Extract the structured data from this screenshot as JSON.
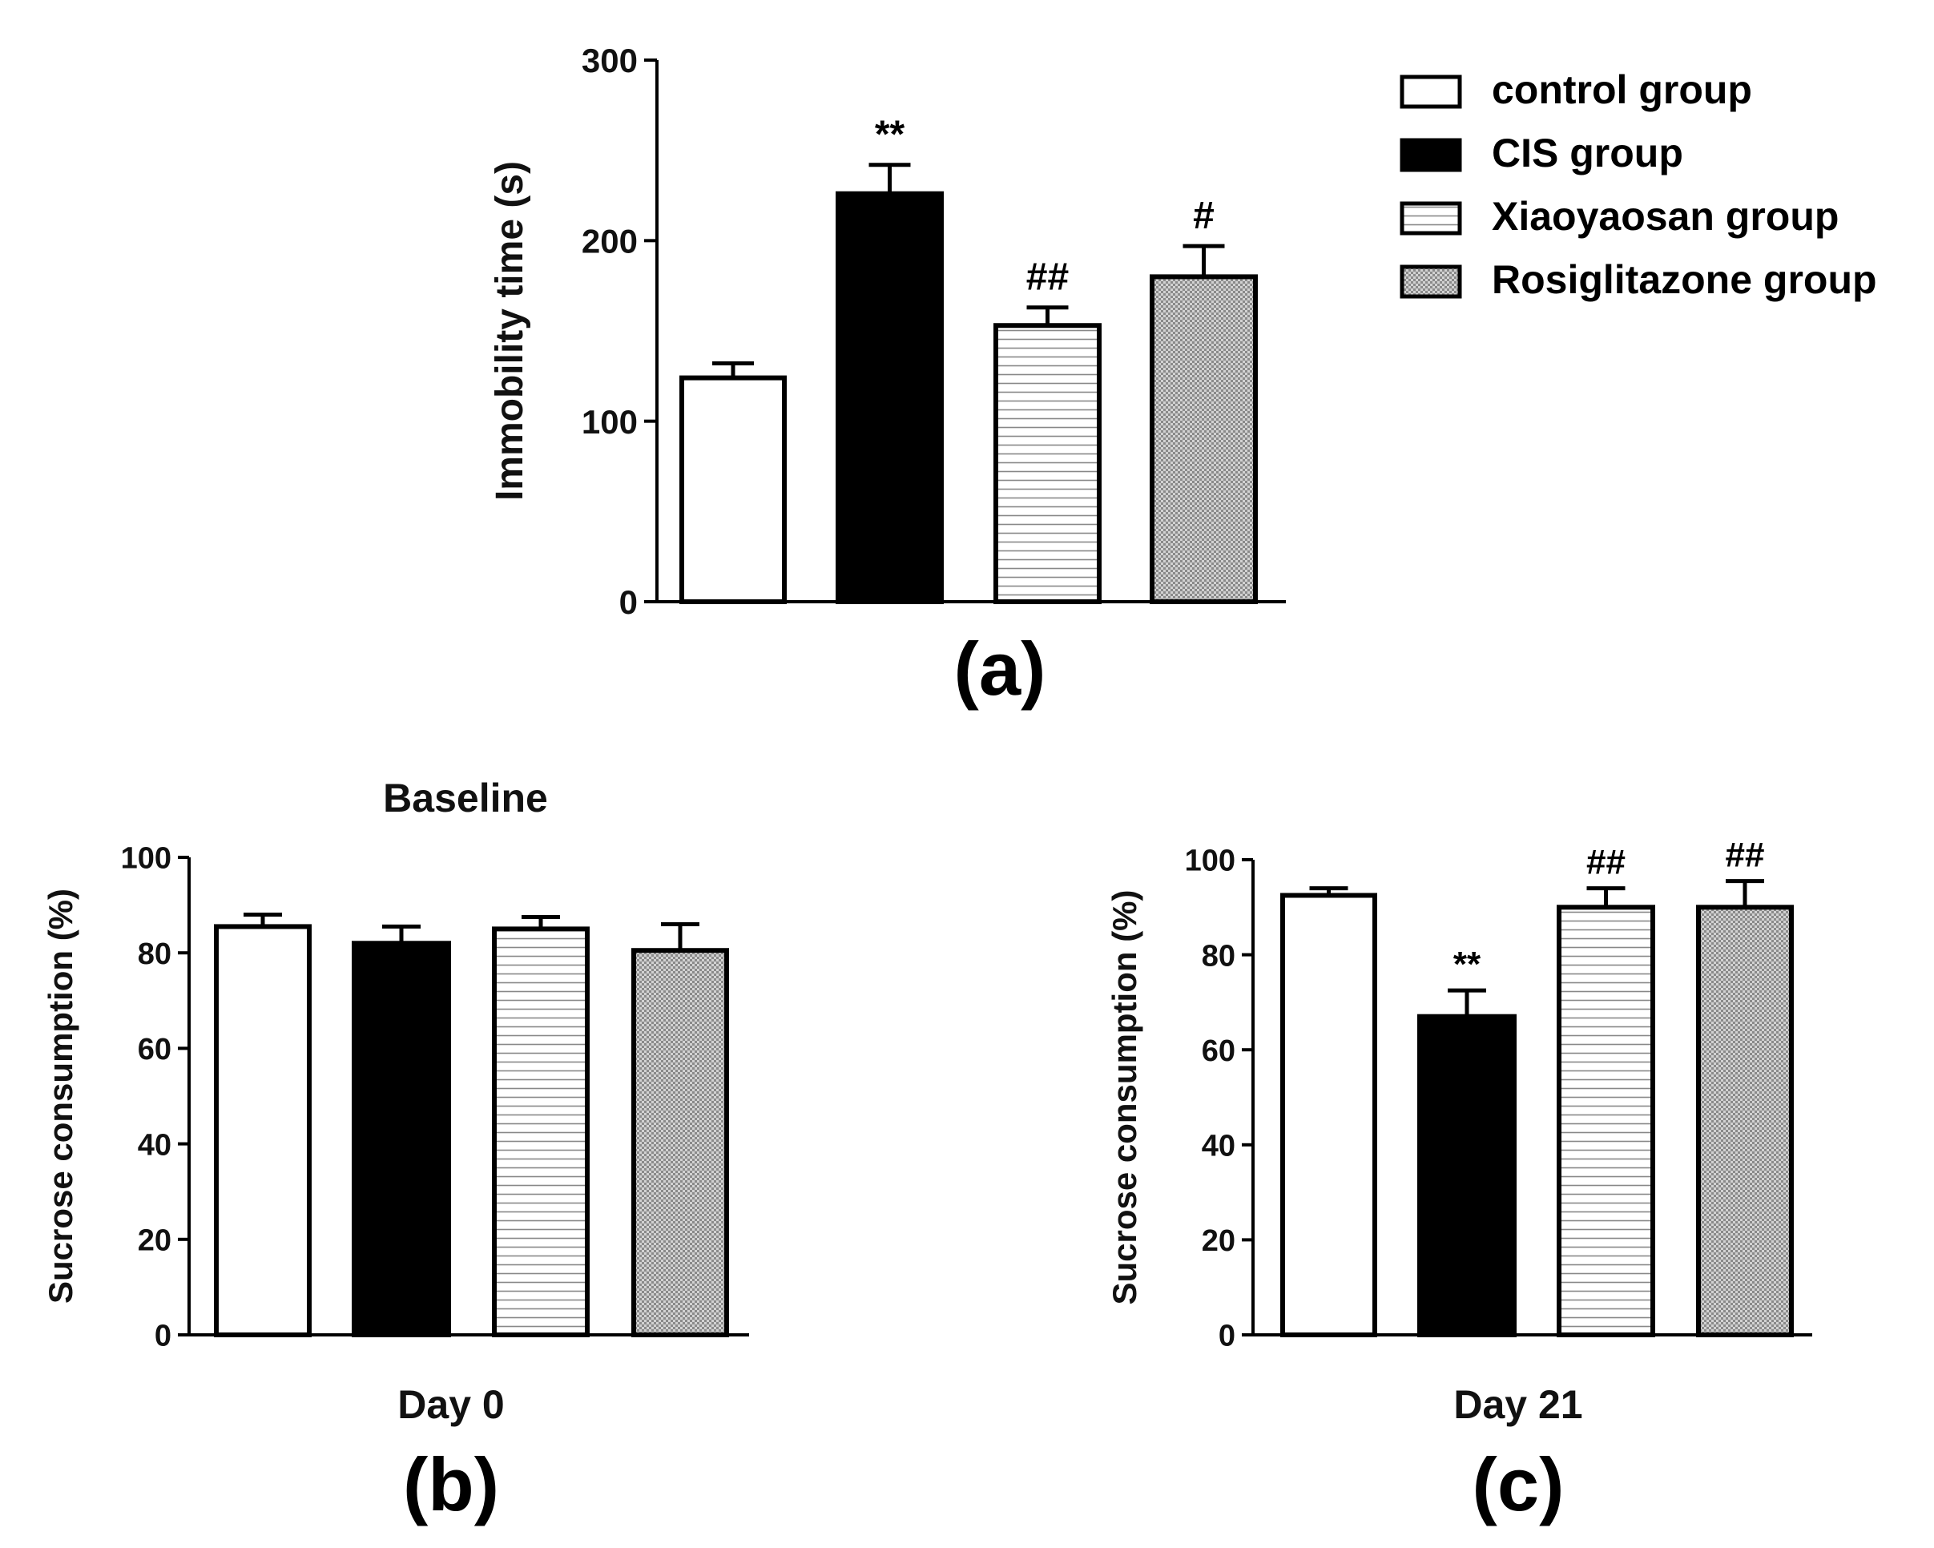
{
  "legend": [
    {
      "key": "control",
      "label": "control group"
    },
    {
      "key": "cis",
      "label": "CIS group"
    },
    {
      "key": "xiao",
      "label": "Xiaoyaosan group"
    },
    {
      "key": "rosi",
      "label": "Rosiglitazone group"
    }
  ],
  "chart_data": [
    {
      "type": "bar",
      "panel": "(a)",
      "title": "",
      "xlabel": "",
      "ylabel": "Immobility time (s)",
      "ylim": [
        0,
        300
      ],
      "yticks": [
        0,
        100,
        200,
        300
      ],
      "categories": [
        "control group",
        "CIS group",
        "Xiaoyaosan group",
        "Rosiglitazone group"
      ],
      "values": [
        124,
        226,
        153,
        180
      ],
      "errors": [
        8,
        16,
        10,
        17
      ],
      "annotations": [
        "",
        "**",
        "##",
        "#"
      ]
    },
    {
      "type": "bar",
      "panel": "(b)",
      "title": "Baseline",
      "xlabel": "Day 0",
      "ylabel": "Sucrose consumption (%)",
      "ylim": [
        0,
        100
      ],
      "yticks": [
        0,
        20,
        40,
        60,
        80,
        100
      ],
      "categories": [
        "control group",
        "CIS group",
        "Xiaoyaosan group",
        "Rosiglitazone group"
      ],
      "values": [
        85.5,
        82,
        85,
        80.5
      ],
      "errors": [
        2.5,
        3.5,
        2.5,
        5.5
      ],
      "annotations": [
        "",
        "",
        "",
        ""
      ]
    },
    {
      "type": "bar",
      "panel": "(c)",
      "title": "",
      "xlabel": "Day 21",
      "ylabel": "Sucrose consumption (%)",
      "ylim": [
        0,
        100
      ],
      "yticks": [
        0,
        20,
        40,
        60,
        80,
        100
      ],
      "categories": [
        "control group",
        "CIS group",
        "Xiaoyaosan group",
        "Rosiglitazone group"
      ],
      "values": [
        92.5,
        67,
        90,
        90
      ],
      "errors": [
        1.5,
        5.5,
        4,
        5.5
      ],
      "annotations": [
        "",
        "**",
        "##",
        "##"
      ]
    }
  ]
}
